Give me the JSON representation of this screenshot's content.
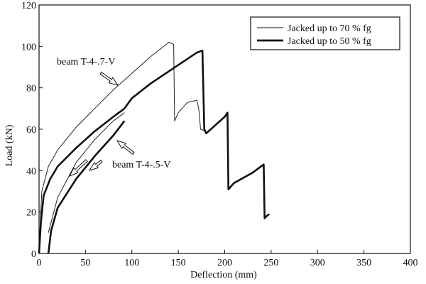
{
  "chart_data": {
    "type": "line",
    "xlabel": "Deflection (mm)",
    "ylabel": "Load (kN)",
    "xlim": [
      0,
      400
    ],
    "ylim": [
      0,
      120
    ],
    "x_ticks": [
      0,
      50,
      100,
      150,
      200,
      250,
      300,
      350,
      400
    ],
    "y_ticks": [
      0,
      20,
      40,
      60,
      80,
      100,
      120
    ],
    "grid": false,
    "legend_position": "top-right",
    "legend": [
      {
        "label": "Jacked up to 70 % fg",
        "style": "thin"
      },
      {
        "label": "Jacked up to 50 % fg",
        "style": "thick"
      }
    ],
    "annotations": [
      {
        "text": "beam T-4-.7-V"
      },
      {
        "text": "beam T-4-.5-V"
      }
    ],
    "series": [
      {
        "style": "thin",
        "color": "#222222",
        "x": [
          0,
          1,
          3,
          10,
          20,
          40,
          60,
          80,
          100,
          120,
          140,
          145,
          146,
          150,
          160,
          170,
          172,
          174,
          180
        ],
        "y": [
          0,
          12,
          30,
          42,
          50,
          61,
          70,
          79,
          87,
          95,
          102,
          101,
          64,
          68,
          73,
          74,
          70,
          60,
          59
        ]
      },
      {
        "style": "thin",
        "color": "#222222",
        "x": [
          10,
          20,
          40,
          60,
          80,
          92
        ],
        "y": [
          10,
          27,
          44,
          55,
          64,
          68
        ]
      },
      {
        "style": "thick",
        "color": "#111111",
        "x": [
          0,
          2,
          5,
          12,
          20,
          40,
          60,
          80,
          92,
          100,
          120,
          140,
          150,
          160,
          170,
          176,
          178,
          180,
          200,
          203,
          204,
          210,
          230,
          242,
          243,
          245,
          248
        ],
        "y": [
          0,
          15,
          28,
          36,
          42,
          51,
          59,
          66,
          70,
          75,
          82,
          88,
          91,
          94,
          97,
          98,
          60,
          58,
          66,
          68,
          31,
          34,
          39,
          43,
          17,
          18,
          19
        ]
      },
      {
        "style": "thick",
        "color": "#111111",
        "x": [
          10,
          13,
          20,
          40,
          60,
          80,
          92
        ],
        "y": [
          0,
          11,
          22,
          36,
          47,
          57,
          64
        ]
      }
    ]
  }
}
